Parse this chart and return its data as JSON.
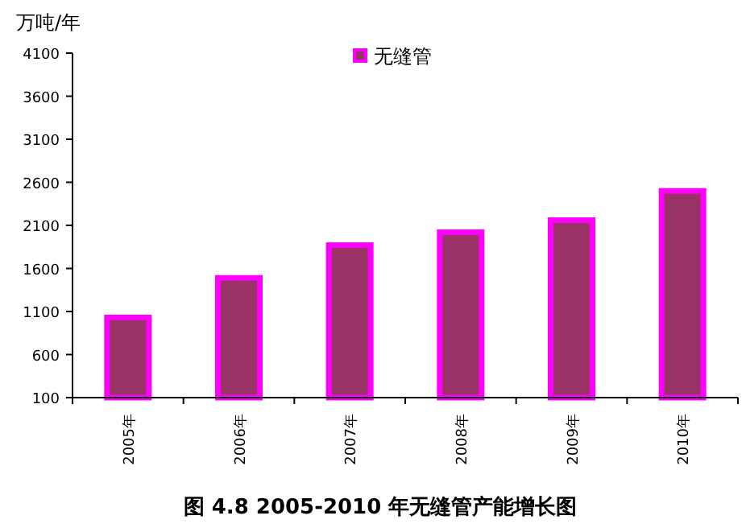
{
  "chart_data": {
    "type": "bar",
    "title": "图 4.8  2005-2010 年无缝管产能增长图",
    "ylabel": "万吨/年",
    "categories": [
      "2005年",
      "2006年",
      "2007年",
      "2008年",
      "2009年",
      "2010年"
    ],
    "series": [
      {
        "name": "无缝管",
        "color": "#993366",
        "values": [
          1030,
          1490,
          1870,
          2020,
          2160,
          2500
        ]
      }
    ],
    "ylim": [
      100,
      4100
    ],
    "yticks": [
      100,
      600,
      1100,
      1600,
      2100,
      2600,
      3100,
      3600,
      4100
    ],
    "grid": false,
    "legend": "top"
  }
}
